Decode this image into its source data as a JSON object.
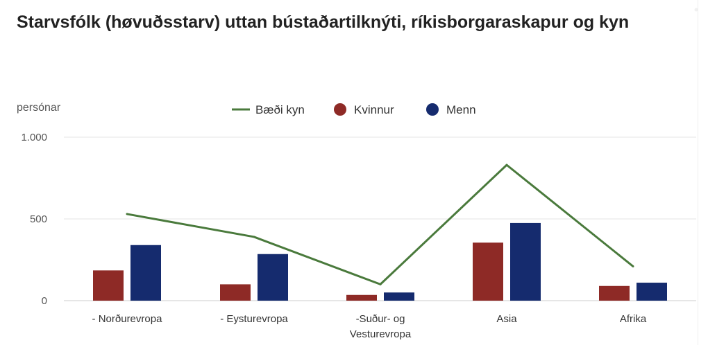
{
  "title": "Starvsfólk (høvuðsstarv) uttan bústaðartilknýti, ríkisborgaraskapur og kyn",
  "chart_data": {
    "type": "bar",
    "title": "Starvsfólk (høvuðsstarv) uttan bústaðartilknýti, ríkisborgaraskapur og kyn",
    "ylabel": "persónar",
    "xlabel": "",
    "ylim": [
      0,
      1000
    ],
    "yticks": [
      {
        "value": 0,
        "label": "0"
      },
      {
        "value": 500,
        "label": "500"
      },
      {
        "value": 1000,
        "label": "1.000"
      }
    ],
    "categories": [
      [
        "- Norðurevropa"
      ],
      [
        "- Eysturevropa"
      ],
      [
        "-Suður- og",
        "Vesturevropa"
      ],
      [
        "Asia"
      ],
      [
        "Afrika"
      ]
    ],
    "series": [
      {
        "name": "Kvinnur",
        "type": "bar",
        "color": "#8e2a26",
        "values": [
          185,
          100,
          35,
          355,
          90
        ]
      },
      {
        "name": "Menn",
        "type": "bar",
        "color": "#152b6e",
        "values": [
          340,
          285,
          50,
          475,
          110
        ]
      },
      {
        "name": "Bæði kyn",
        "type": "line",
        "color": "#4a7a3c",
        "values": [
          530,
          390,
          100,
          830,
          210
        ]
      }
    ],
    "legend": {
      "placement": "top-center",
      "order": [
        "Bæði kyn",
        "Kvinnur",
        "Menn"
      ]
    },
    "grid": true
  }
}
